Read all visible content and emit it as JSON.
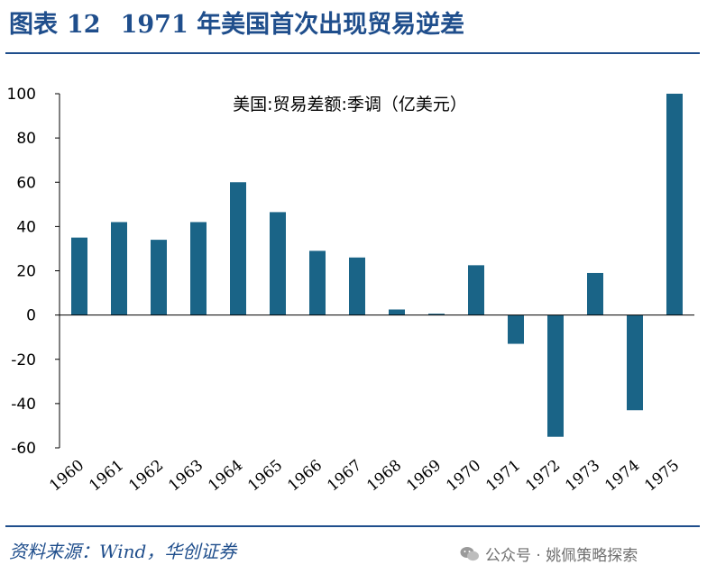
{
  "figure": {
    "label": "图表",
    "number": "12",
    "title": "1971 年美国首次出现贸易逆差"
  },
  "source": "资料来源：Wind，华创证券",
  "watermark": {
    "prefix": "公众号 ·",
    "name": "姚佩策略探索"
  },
  "colors": {
    "bar": "#1a6487",
    "title": "#1f4e8c",
    "axis": "#000000"
  },
  "chart_data": {
    "type": "bar",
    "title": "美国:贸易差额:季调（亿美元）",
    "xlabel": "",
    "ylabel": "",
    "categories": [
      "1960",
      "1961",
      "1962",
      "1963",
      "1964",
      "1965",
      "1966",
      "1967",
      "1968",
      "1969",
      "1970",
      "1971",
      "1972",
      "1973",
      "1974",
      "1975"
    ],
    "values": [
      35,
      42,
      34,
      42,
      60,
      46.5,
      29,
      26,
      2.5,
      0.6,
      22.5,
      -13,
      -55,
      19,
      -43,
      100
    ],
    "ylim": [
      -60,
      100
    ],
    "yticks": [
      "100",
      "80",
      "60",
      "40",
      "20",
      "0",
      "-20",
      "-40",
      "-60"
    ],
    "grid": false
  }
}
